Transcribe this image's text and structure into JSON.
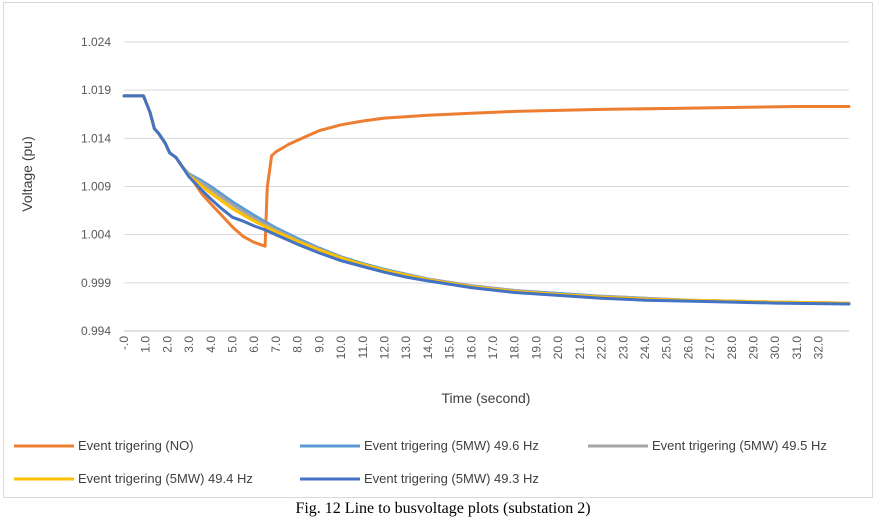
{
  "caption": "Fig. 12 Line to busvoltage plots (substation 2)",
  "chart_data": {
    "type": "line",
    "title": "",
    "xlabel": "Time (second)",
    "ylabel": "Voltage (pu)",
    "x_range": [
      0,
      33.4
    ],
    "ylim": [
      0.994,
      1.024
    ],
    "yticks": [
      "1.024",
      "1.019",
      "1.014",
      "1.009",
      "1.004",
      "0.999",
      "0.994"
    ],
    "xticks": [
      "-.0",
      "1.0",
      "2.0",
      "3.0",
      "4.0",
      "5.0",
      "6.0",
      "7.0",
      "8.0",
      "9.0",
      "10.0",
      "11.0",
      "12.0",
      "13.0",
      "14.0",
      "15.0",
      "16.0",
      "17.0",
      "18.0",
      "19.0",
      "20.0",
      "21.0",
      "22.0",
      "23.0",
      "24.0",
      "25.0",
      "26.0",
      "27.0",
      "28.0",
      "29.0",
      "30.0",
      "31.0",
      "32.0"
    ],
    "grid": "horizontal",
    "legend_position": "bottom",
    "series": [
      {
        "name": "Event trigering (NO)",
        "color": "#ED7D31",
        "x": [
          0,
          0.4,
          0.9,
          1.2,
          1.4,
          1.6,
          1.9,
          2.1,
          2.4,
          2.7,
          3.0,
          3.3,
          3.6,
          4.0,
          4.5,
          5.0,
          5.5,
          6.0,
          6.5,
          6.55,
          6.6,
          6.7,
          6.8,
          7.0,
          7.3,
          7.6,
          8.0,
          8.5,
          9.0,
          10.0,
          11.0,
          12.0,
          14.0,
          16.0,
          18.0,
          20.0,
          22.0,
          25.0,
          28.0,
          31.0,
          33.4
        ],
        "values": [
          1.0184,
          1.0184,
          1.0184,
          1.0167,
          1.015,
          1.0145,
          1.0135,
          1.0125,
          1.012,
          1.011,
          1.0102,
          1.0092,
          1.0082,
          1.0072,
          1.006,
          1.0048,
          1.0038,
          1.0032,
          1.0028,
          1.006,
          1.009,
          1.0105,
          1.0122,
          1.0126,
          1.013,
          1.0134,
          1.0138,
          1.0143,
          1.0148,
          1.0154,
          1.0158,
          1.0161,
          1.0164,
          1.0166,
          1.0168,
          1.0169,
          1.017,
          1.0171,
          1.0172,
          1.0173,
          1.0173
        ]
      },
      {
        "name": "Event trigering (5MW) 49.6 Hz",
        "color": "#5B9BD5",
        "x": [
          0,
          0.4,
          0.9,
          1.2,
          1.4,
          1.6,
          1.9,
          2.1,
          2.4,
          2.7,
          3.0,
          3.5,
          4.0,
          4.5,
          5.0,
          6.0,
          7.0,
          8.0,
          9.0,
          10.0,
          11.0,
          12.0,
          13.0,
          14.0,
          16.0,
          18.0,
          20.0,
          22.0,
          24.0,
          26.0,
          28.0,
          30.0,
          33.4
        ],
        "values": [
          1.0184,
          1.0184,
          1.0184,
          1.0167,
          1.015,
          1.0145,
          1.0135,
          1.0125,
          1.012,
          1.011,
          1.0103,
          1.0097,
          1.009,
          1.0082,
          1.0074,
          1.006,
          1.0047,
          1.0036,
          1.0026,
          1.0017,
          1.001,
          1.0004,
          0.9999,
          0.9994,
          0.9987,
          0.9982,
          0.9979,
          0.9976,
          0.9974,
          0.9972,
          0.9971,
          0.997,
          0.9969
        ]
      },
      {
        "name": "Event trigering (5MW) 49.5 Hz",
        "color": "#A5A5A5",
        "x": [
          0,
          0.4,
          0.9,
          1.2,
          1.4,
          1.6,
          1.9,
          2.1,
          2.4,
          2.7,
          3.0,
          3.5,
          4.0,
          4.5,
          5.0,
          6.0,
          7.0,
          8.0,
          9.0,
          10.0,
          11.0,
          12.0,
          13.0,
          14.0,
          16.0,
          18.0,
          20.0,
          22.0,
          24.0,
          26.0,
          28.0,
          30.0,
          33.4
        ],
        "values": [
          1.0184,
          1.0184,
          1.0184,
          1.0167,
          1.015,
          1.0145,
          1.0135,
          1.0125,
          1.012,
          1.011,
          1.0102,
          1.0095,
          1.0087,
          1.0079,
          1.0071,
          1.0057,
          1.0045,
          1.0034,
          1.0025,
          1.0016,
          1.0009,
          1.0003,
          0.9998,
          0.9994,
          0.9987,
          0.9982,
          0.9978,
          0.9976,
          0.9974,
          0.9972,
          0.9971,
          0.997,
          0.9969
        ]
      },
      {
        "name": "Event trigering (5MW) 49.4 Hz",
        "color": "#FFC000",
        "x": [
          0,
          0.4,
          0.9,
          1.2,
          1.4,
          1.6,
          1.9,
          2.1,
          2.4,
          2.7,
          3.0,
          3.5,
          4.0,
          4.5,
          5.0,
          6.0,
          7.0,
          8.0,
          9.0,
          10.0,
          11.0,
          12.0,
          13.0,
          14.0,
          16.0,
          18.0,
          20.0,
          22.0,
          24.0,
          26.0,
          28.0,
          30.0,
          33.4
        ],
        "values": [
          1.0184,
          1.0184,
          1.0184,
          1.0167,
          1.015,
          1.0145,
          1.0135,
          1.0125,
          1.012,
          1.011,
          1.0101,
          1.0092,
          1.0083,
          1.0075,
          1.0067,
          1.0054,
          1.0043,
          1.0033,
          1.0024,
          1.0016,
          1.0009,
          1.0003,
          0.9998,
          0.9993,
          0.9986,
          0.9981,
          0.9978,
          0.9975,
          0.9973,
          0.9972,
          0.9971,
          0.997,
          0.9969
        ]
      },
      {
        "name": "Event trigering (5MW) 49.3 Hz",
        "color": "#4472C4",
        "x": [
          0,
          0.4,
          0.9,
          1.2,
          1.4,
          1.6,
          1.9,
          2.1,
          2.4,
          2.7,
          3.0,
          3.5,
          4.0,
          4.5,
          5.0,
          5.5,
          6.0,
          6.5,
          7.0,
          8.0,
          9.0,
          10.0,
          11.0,
          12.0,
          13.0,
          14.0,
          16.0,
          18.0,
          20.0,
          22.0,
          24.0,
          26.0,
          28.0,
          30.0,
          33.4
        ],
        "values": [
          1.0184,
          1.0184,
          1.0184,
          1.0167,
          1.015,
          1.0145,
          1.0135,
          1.0125,
          1.012,
          1.011,
          1.01,
          1.0088,
          1.0077,
          1.0067,
          1.0058,
          1.0054,
          1.0049,
          1.0045,
          1.004,
          1.003,
          1.0021,
          1.0013,
          1.0007,
          1.0001,
          0.9996,
          0.9992,
          0.9985,
          0.998,
          0.9977,
          0.9974,
          0.9972,
          0.9971,
          0.997,
          0.9969,
          0.9968
        ]
      }
    ]
  }
}
